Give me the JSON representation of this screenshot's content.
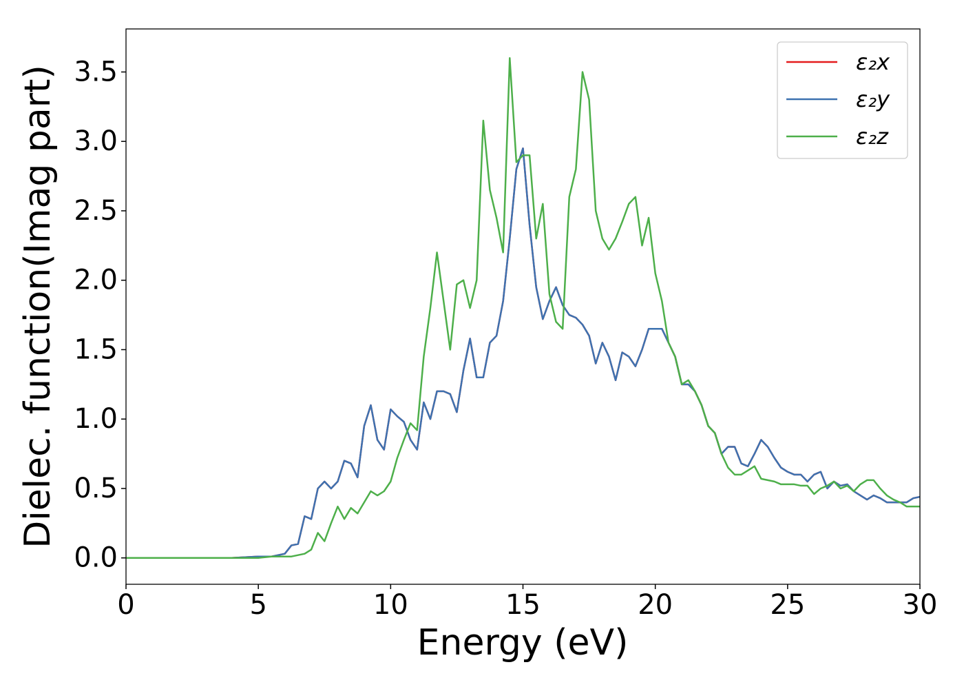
{
  "chart_data": {
    "type": "line",
    "x_label": "Energy (eV)",
    "y_label": "Dielec. function(Imag part)",
    "x": [
      0,
      1,
      2,
      3,
      4,
      5,
      5.5,
      6,
      6.25,
      6.5,
      6.75,
      7,
      7.25,
      7.5,
      7.75,
      8,
      8.25,
      8.5,
      8.75,
      9,
      9.25,
      9.5,
      9.75,
      10,
      10.25,
      10.5,
      10.75,
      11,
      11.25,
      11.5,
      11.75,
      12,
      12.25,
      12.5,
      12.75,
      13,
      13.25,
      13.5,
      13.75,
      14,
      14.25,
      14.5,
      14.75,
      15,
      15.25,
      15.5,
      15.75,
      16,
      16.25,
      16.5,
      16.75,
      17,
      17.25,
      17.5,
      17.75,
      18,
      18.25,
      18.5,
      18.75,
      19,
      19.25,
      19.5,
      19.75,
      20,
      20.25,
      20.5,
      20.75,
      21,
      21.25,
      21.5,
      21.75,
      22,
      22.25,
      22.5,
      22.75,
      23,
      23.25,
      23.5,
      23.75,
      24,
      24.25,
      24.5,
      24.75,
      25,
      25.25,
      25.5,
      25.75,
      26,
      26.25,
      26.5,
      26.75,
      27,
      27.25,
      27.5,
      27.75,
      28,
      28.25,
      28.5,
      28.75,
      29,
      29.25,
      29.5,
      29.75,
      30
    ],
    "series": [
      {
        "name": "ε₂x",
        "color": "#e41a1c",
        "values": [
          0,
          0,
          0,
          0,
          0,
          0.01,
          0.01,
          0.03,
          0.09,
          0.1,
          0.3,
          0.28,
          0.5,
          0.55,
          0.5,
          0.55,
          0.7,
          0.68,
          0.58,
          0.95,
          1.1,
          0.85,
          0.78,
          1.07,
          1.02,
          0.98,
          0.85,
          0.78,
          1.12,
          1.0,
          1.2,
          1.2,
          1.18,
          1.05,
          1.35,
          1.58,
          1.3,
          1.3,
          1.55,
          1.6,
          1.85,
          2.3,
          2.8,
          2.95,
          2.4,
          1.95,
          1.72,
          1.85,
          1.95,
          1.82,
          1.75,
          1.73,
          1.68,
          1.6,
          1.4,
          1.55,
          1.45,
          1.28,
          1.48,
          1.45,
          1.38,
          1.5,
          1.65,
          1.65,
          1.65,
          1.55,
          1.45,
          1.25,
          1.25,
          1.2,
          1.1,
          0.95,
          0.9,
          0.75,
          0.8,
          0.8,
          0.68,
          0.66,
          0.75,
          0.85,
          0.8,
          0.72,
          0.65,
          0.62,
          0.6,
          0.6,
          0.55,
          0.6,
          0.62,
          0.5,
          0.55,
          0.52,
          0.53,
          0.48,
          0.45,
          0.42,
          0.45,
          0.43,
          0.4,
          0.4,
          0.4,
          0.4,
          0.43,
          0.44
        ]
      },
      {
        "name": "ε₂y",
        "color": "#3d72b0",
        "values": [
          0,
          0,
          0,
          0,
          0,
          0.01,
          0.01,
          0.03,
          0.09,
          0.1,
          0.3,
          0.28,
          0.5,
          0.55,
          0.5,
          0.55,
          0.7,
          0.68,
          0.58,
          0.95,
          1.1,
          0.85,
          0.78,
          1.07,
          1.02,
          0.98,
          0.85,
          0.78,
          1.12,
          1.0,
          1.2,
          1.2,
          1.18,
          1.05,
          1.35,
          1.58,
          1.3,
          1.3,
          1.55,
          1.6,
          1.85,
          2.3,
          2.8,
          2.95,
          2.4,
          1.95,
          1.72,
          1.85,
          1.95,
          1.82,
          1.75,
          1.73,
          1.68,
          1.6,
          1.4,
          1.55,
          1.45,
          1.28,
          1.48,
          1.45,
          1.38,
          1.5,
          1.65,
          1.65,
          1.65,
          1.55,
          1.45,
          1.25,
          1.25,
          1.2,
          1.1,
          0.95,
          0.9,
          0.75,
          0.8,
          0.8,
          0.68,
          0.66,
          0.75,
          0.85,
          0.8,
          0.72,
          0.65,
          0.62,
          0.6,
          0.6,
          0.55,
          0.6,
          0.62,
          0.5,
          0.55,
          0.52,
          0.53,
          0.48,
          0.45,
          0.42,
          0.45,
          0.43,
          0.4,
          0.4,
          0.4,
          0.4,
          0.43,
          0.44
        ]
      },
      {
        "name": "ε₂z",
        "color": "#4daf4a",
        "values": [
          0,
          0,
          0,
          0,
          0,
          0,
          0.01,
          0.01,
          0.01,
          0.02,
          0.03,
          0.06,
          0.18,
          0.12,
          0.25,
          0.37,
          0.28,
          0.36,
          0.32,
          0.4,
          0.48,
          0.45,
          0.48,
          0.55,
          0.72,
          0.85,
          0.97,
          0.92,
          1.45,
          1.8,
          2.2,
          1.85,
          1.5,
          1.97,
          2.0,
          1.8,
          2.0,
          3.15,
          2.65,
          2.45,
          2.2,
          3.6,
          2.85,
          2.9,
          2.9,
          2.3,
          2.55,
          1.9,
          1.7,
          1.65,
          2.6,
          2.8,
          3.5,
          3.3,
          2.5,
          2.3,
          2.22,
          2.3,
          2.42,
          2.55,
          2.6,
          2.25,
          2.45,
          2.05,
          1.85,
          1.55,
          1.45,
          1.25,
          1.28,
          1.2,
          1.1,
          0.95,
          0.9,
          0.75,
          0.65,
          0.6,
          0.6,
          0.63,
          0.66,
          0.57,
          0.56,
          0.55,
          0.53,
          0.53,
          0.53,
          0.52,
          0.52,
          0.46,
          0.5,
          0.52,
          0.55,
          0.5,
          0.52,
          0.48,
          0.53,
          0.56,
          0.56,
          0.5,
          0.45,
          0.42,
          0.4,
          0.37,
          0.37,
          0.37
        ]
      }
    ],
    "xlim": [
      0,
      30
    ],
    "ylim": [
      -0.19,
      3.81
    ],
    "xticks": [
      0,
      5,
      10,
      15,
      20,
      25,
      30
    ],
    "yticks": [
      {
        "value": 0,
        "label": "0.0"
      },
      0.5,
      {
        "value": 1,
        "label": "1.0"
      },
      1.5,
      {
        "value": 2,
        "label": "2.0"
      },
      2.5,
      {
        "value": 3,
        "label": "3.0"
      },
      3.5
    ],
    "legend": "upper right"
  }
}
